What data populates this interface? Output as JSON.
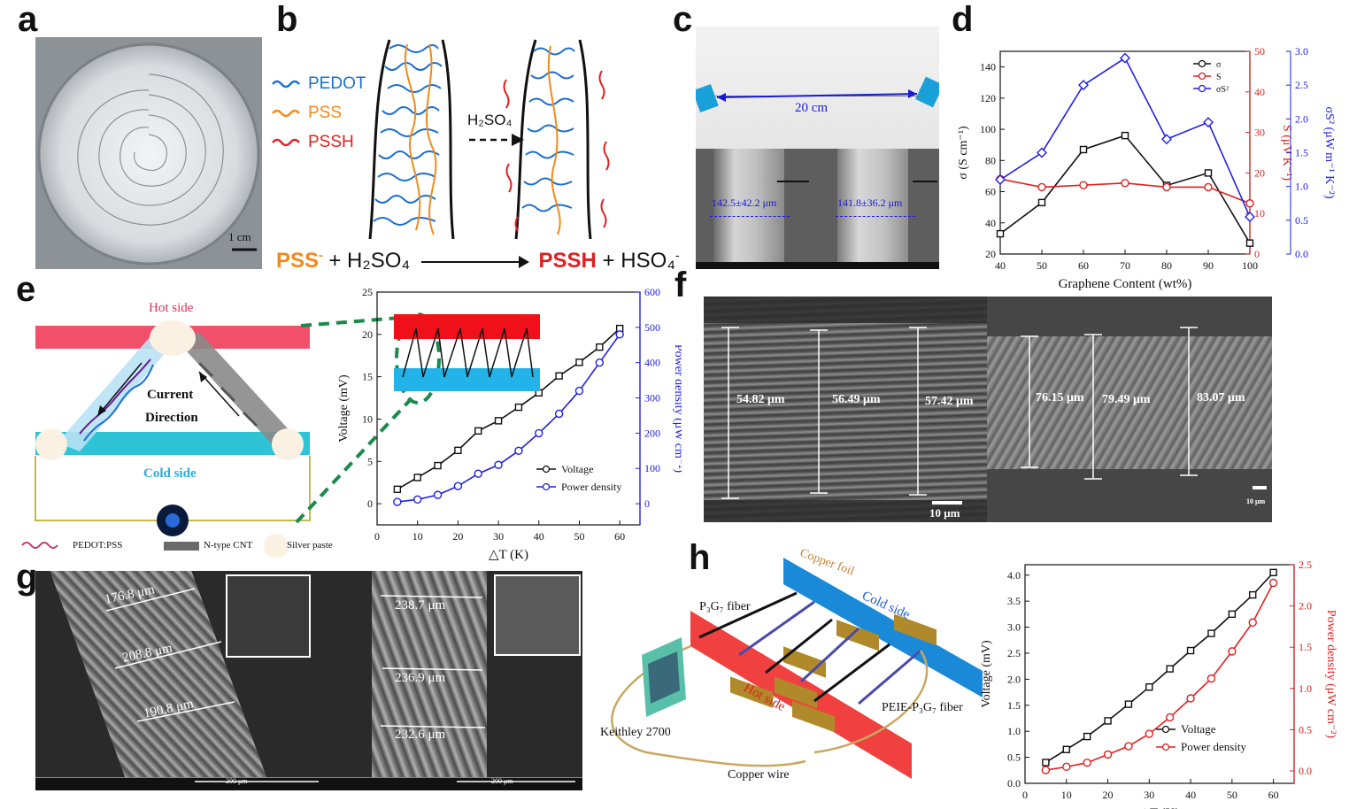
{
  "panels": {
    "a": {
      "label": "a",
      "scale": "1 cm"
    },
    "b": {
      "label": "b",
      "legend": [
        "PEDOT",
        "PSS",
        "PSSH"
      ],
      "arrow": "H₂SO₄",
      "equation": {
        "left1": "PSS",
        "left1_sup": "-",
        "left2": " + H₂SO₄",
        "right1": "PSSH",
        "right2": " + HSO₄",
        "right2_sup": "-"
      }
    },
    "c": {
      "label": "c",
      "length": "20 cm",
      "d1": "142.5±42.2 μm",
      "d2": "141.8±36.2 μm"
    },
    "d": {
      "label": "d"
    },
    "e": {
      "label": "e",
      "hot": "Hot side",
      "cold": "Cold side",
      "current1": "Current",
      "current2": "Direction",
      "legend": [
        "PEDOT:PSS",
        "N-type CNT",
        "Silver paste"
      ]
    },
    "f": {
      "label": "f",
      "left_dims": [
        "54.82 μm",
        "56.49 μm",
        "57.42 μm"
      ],
      "right_dims": [
        "76.15 μm",
        "79.49 μm",
        "83.07 μm"
      ],
      "scale1": "10 μm",
      "scale2": "10 μm"
    },
    "g": {
      "label": "g",
      "left_dims": [
        "176.8 μm",
        "208.8 μm",
        "190.8 μm"
      ],
      "right_dims": [
        "238.7 μm",
        "236.9 μm",
        "232.6 μm"
      ],
      "scale": "200 μm"
    },
    "h": {
      "label": "h",
      "copper_foil": "Copper foil",
      "cold": "Cold side",
      "hot": "Hot side",
      "fiber1": "P₃G₇ fiber",
      "fiber2": "PEIE-P₃G₇ fiber",
      "meter": "Keithley 2700",
      "wire": "Copper wire"
    }
  },
  "chart_data": [
    {
      "id": "d",
      "type": "line",
      "xlabel": "Graphene Content (wt%)",
      "ylabel_left": "σ (S cm⁻¹)",
      "ylabel_right1": "S (μV K⁻¹)",
      "ylabel_right2": "σS² (μW m⁻¹ K⁻²)",
      "x": [
        40,
        50,
        60,
        70,
        80,
        90,
        100
      ],
      "xlim": [
        40,
        100
      ],
      "ylim_left": [
        20,
        150
      ],
      "ylim_right1": [
        0,
        50
      ],
      "ylim_right2": [
        0,
        3.0
      ],
      "x_ticks": [
        "40",
        "50",
        "60",
        "70",
        "80",
        "90",
        "100"
      ],
      "yl_ticks": [
        "20",
        "40",
        "60",
        "80",
        "100",
        "120",
        "140"
      ],
      "yr1_ticks": [
        "0",
        "10",
        "20",
        "30",
        "40",
        "50"
      ],
      "yr2_ticks": [
        "0.0",
        "0.5",
        "1.0",
        "1.5",
        "2.0",
        "2.5",
        "3.0"
      ],
      "legend": [
        "σ",
        "S",
        "σS²"
      ],
      "series": [
        {
          "name": "σ",
          "axis": "left",
          "color": "#111111",
          "values": [
            33,
            53,
            87,
            96,
            64,
            72,
            27
          ]
        },
        {
          "name": "S",
          "axis": "right1",
          "color": "#e02020",
          "values": [
            18.5,
            16.5,
            17,
            17.5,
            16.5,
            16.5,
            12.5
          ]
        },
        {
          "name": "σS²",
          "axis": "right2",
          "color": "#2020e0",
          "values": [
            1.1,
            1.5,
            2.5,
            2.9,
            1.7,
            1.95,
            0.55
          ]
        }
      ]
    },
    {
      "id": "e",
      "type": "line",
      "xlabel": "△T (K)",
      "ylabel_left": "Voltage (mV)",
      "ylabel_right": "Power density (μW cm⁻²)",
      "xlim": [
        0,
        65
      ],
      "ylim_left": [
        -2.5,
        25
      ],
      "ylim_right": [
        -60,
        600
      ],
      "x_ticks": [
        "0",
        "10",
        "20",
        "30",
        "40",
        "50",
        "60"
      ],
      "yl_ticks": [
        "0",
        "5",
        "10",
        "15",
        "20",
        "25"
      ],
      "yr_ticks": [
        "0",
        "100",
        "200",
        "300",
        "400",
        "500",
        "600"
      ],
      "legend": [
        "Voltage",
        "Power density"
      ],
      "x": [
        5,
        10,
        15,
        20,
        25,
        30,
        35,
        40,
        45,
        50,
        55,
        60
      ],
      "series": [
        {
          "name": "Voltage",
          "axis": "left",
          "color": "#111111",
          "values": [
            1.7,
            3.1,
            4.5,
            6.3,
            8.6,
            9.8,
            11.4,
            13.1,
            15.1,
            16.7,
            18.5,
            20.7
          ]
        },
        {
          "name": "Power density",
          "axis": "right",
          "color": "#2020e0",
          "values": [
            5,
            12,
            25,
            50,
            85,
            110,
            150,
            200,
            255,
            320,
            400,
            480
          ]
        }
      ]
    },
    {
      "id": "h",
      "type": "line",
      "xlabel": "△T (K)",
      "ylabel_left": "Voltage (mV)",
      "ylabel_right": "Power density (μW cm⁻²)",
      "xlim": [
        0,
        65
      ],
      "ylim_left": [
        0,
        4.2
      ],
      "ylim_right": [
        -0.15,
        2.5
      ],
      "x_ticks": [
        "0",
        "10",
        "20",
        "30",
        "40",
        "50",
        "60"
      ],
      "yl_ticks": [
        "0.0",
        "0.5",
        "1.0",
        "1.5",
        "2.0",
        "2.5",
        "3.0",
        "3.5",
        "4.0"
      ],
      "yr_ticks": [
        "0.0",
        "0.5",
        "1.0",
        "1.5",
        "2.0",
        "2.5"
      ],
      "legend": [
        "Voltage",
        "Power density"
      ],
      "x": [
        5,
        10,
        15,
        20,
        25,
        30,
        35,
        40,
        45,
        50,
        55,
        60
      ],
      "series": [
        {
          "name": "Voltage",
          "axis": "left",
          "color": "#111111",
          "values": [
            0.4,
            0.65,
            0.9,
            1.2,
            1.52,
            1.85,
            2.2,
            2.55,
            2.88,
            3.25,
            3.62,
            4.05
          ]
        },
        {
          "name": "Power density",
          "axis": "right",
          "color": "#e02020",
          "values": [
            0.01,
            0.05,
            0.1,
            0.2,
            0.3,
            0.45,
            0.65,
            0.88,
            1.12,
            1.45,
            1.8,
            2.28
          ]
        }
      ]
    }
  ]
}
